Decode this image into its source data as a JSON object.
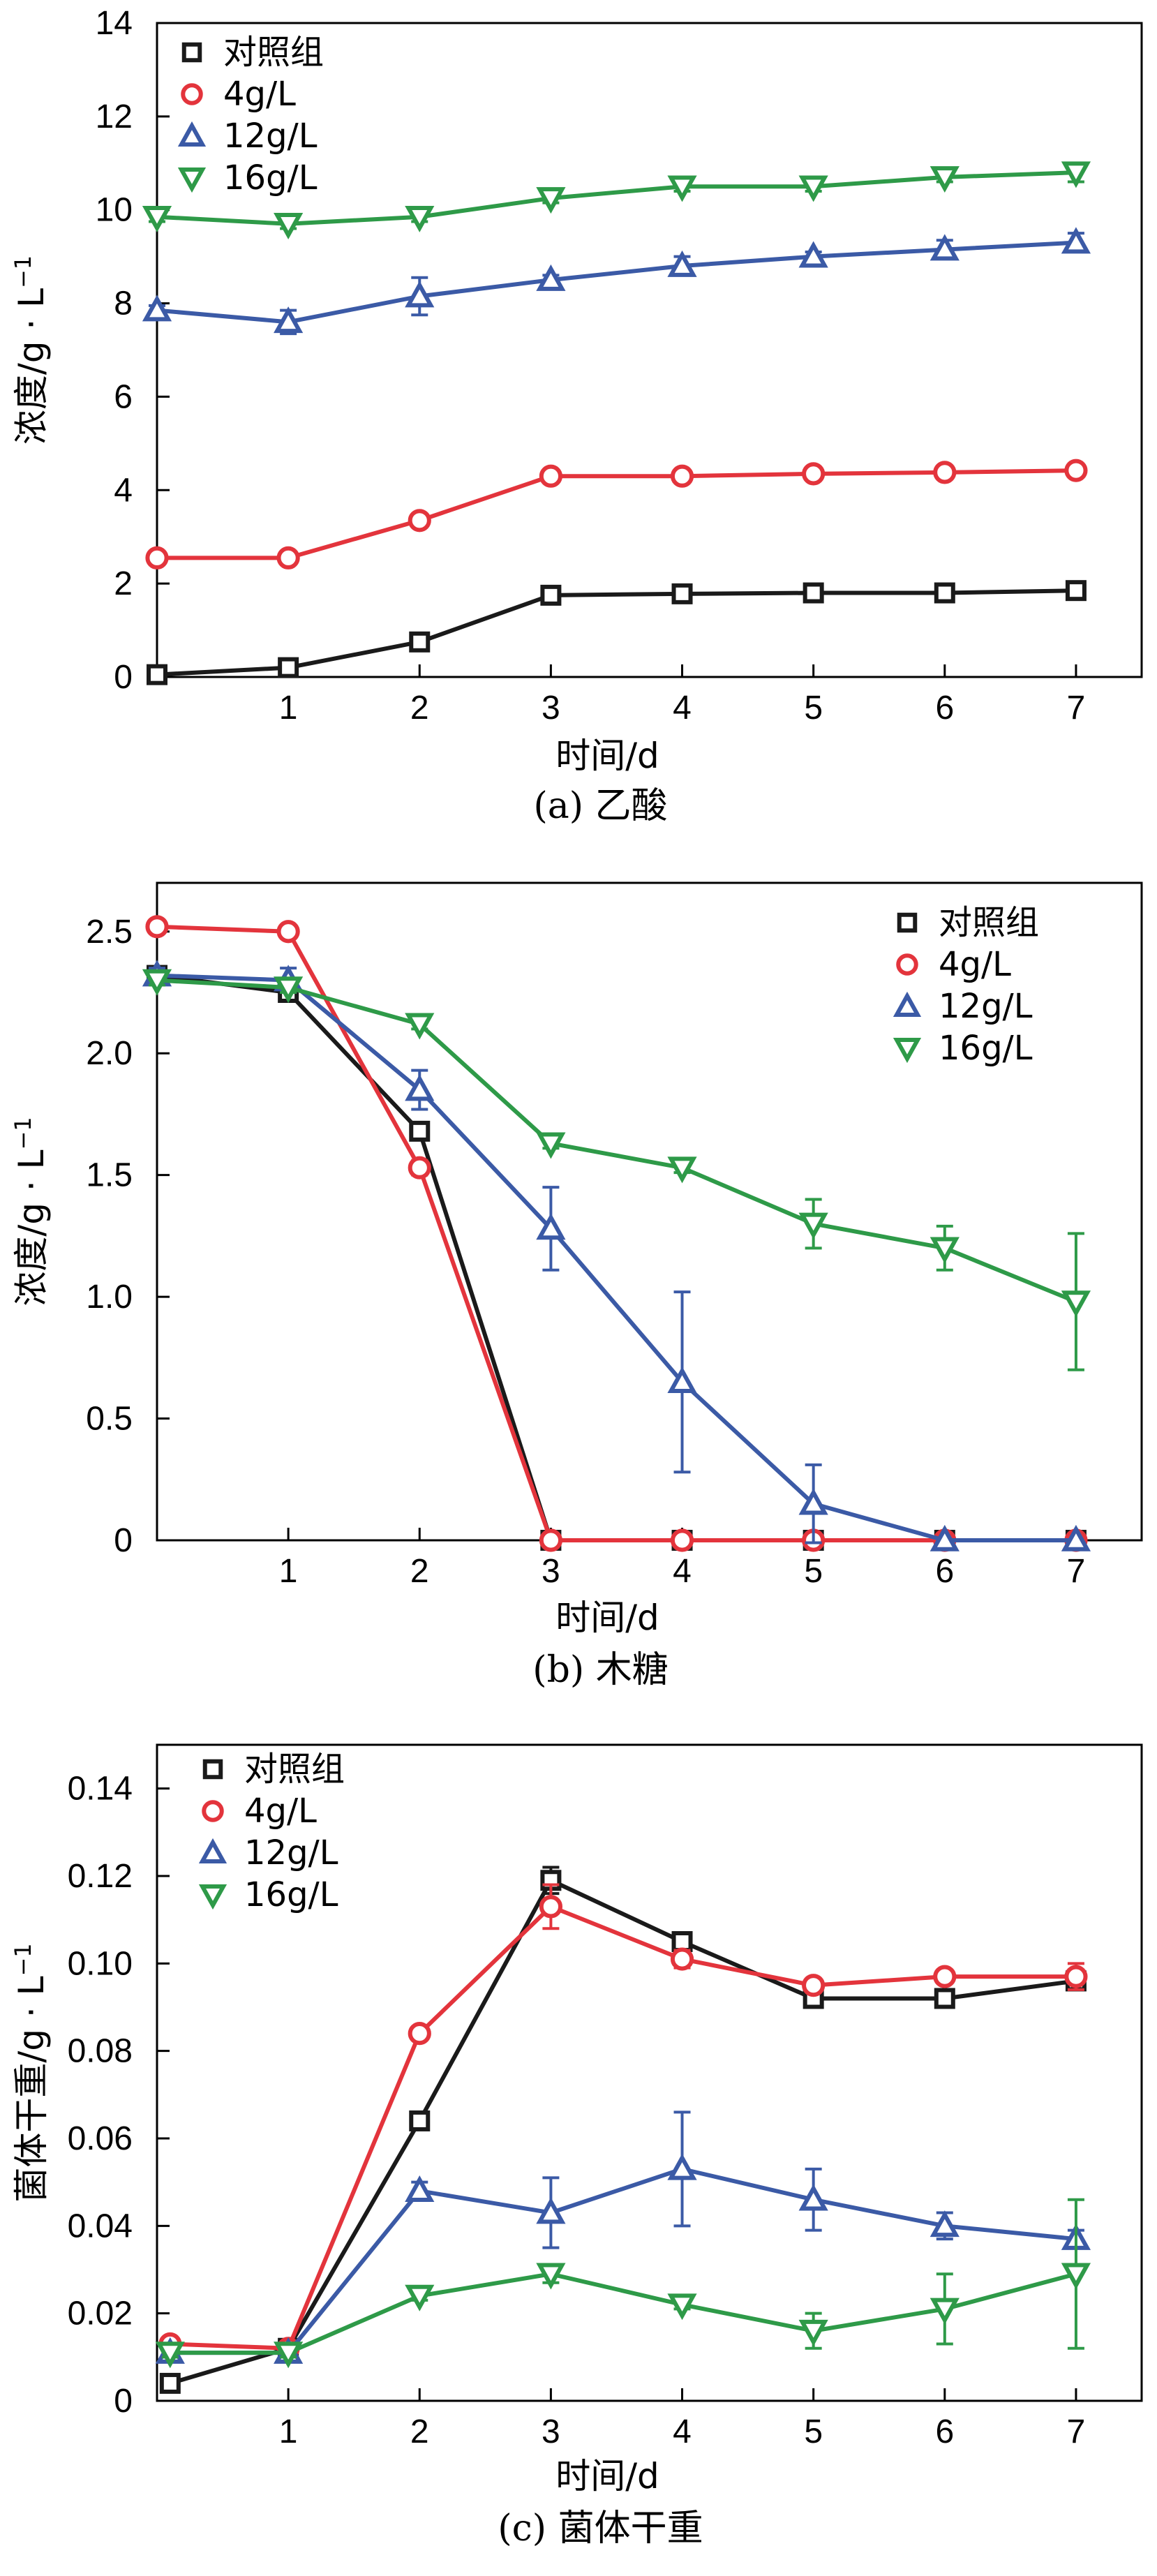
{
  "figure_title": "",
  "colors": {
    "对照组": "#1a1a1a",
    "4g/L": "#e3343c",
    "12g/L": "#3b5aa6",
    "16g/L": "#2e9a48"
  },
  "chart_data": [
    {
      "id": "a",
      "type": "line",
      "caption": "(a) 乙酸",
      "xlabel": "时间/d",
      "ylabel": "浓度/g·L⁻¹",
      "ylabel_main": "浓度/g · L",
      "ylabel_sup": "−1",
      "xlim": [
        0,
        7.5
      ],
      "ylim": [
        0,
        14
      ],
      "x_ticks": [
        1,
        2,
        3,
        4,
        5,
        6,
        7
      ],
      "x_tick_labels": [
        "1",
        "2",
        "3",
        "4",
        "5",
        "6",
        "7"
      ],
      "y_ticks": [
        0,
        2,
        4,
        6,
        8,
        10,
        12,
        14
      ],
      "y_tick_labels": [
        "0",
        "2",
        "4",
        "6",
        "8",
        "10",
        "12",
        "14"
      ],
      "legend_position": "top-left",
      "x": [
        0,
        1,
        2,
        3,
        4,
        5,
        6,
        7
      ],
      "series": [
        {
          "name": "对照组",
          "marker": "square",
          "values": [
            0.05,
            0.2,
            0.75,
            1.75,
            1.78,
            1.8,
            1.8,
            1.85
          ],
          "errors": [
            0.05,
            0.05,
            0.1,
            0.05,
            0.05,
            0.05,
            0.05,
            0.05
          ]
        },
        {
          "name": "4g/L",
          "marker": "circle",
          "values": [
            2.55,
            2.55,
            3.35,
            4.3,
            4.3,
            4.35,
            4.38,
            4.42
          ],
          "errors": [
            0.05,
            0.05,
            0.1,
            0.05,
            0.05,
            0.05,
            0.05,
            0.05
          ]
        },
        {
          "name": "12g/L",
          "marker": "triangle-up",
          "values": [
            7.85,
            7.6,
            8.15,
            8.5,
            8.8,
            9.0,
            9.15,
            9.3
          ],
          "errors": [
            0.1,
            0.25,
            0.4,
            0.1,
            0.2,
            0.1,
            0.2,
            0.2
          ]
        },
        {
          "name": "16g/L",
          "marker": "triangle-down",
          "values": [
            9.85,
            9.7,
            9.85,
            10.25,
            10.5,
            10.5,
            10.7,
            10.8
          ],
          "errors": [
            0.1,
            0.1,
            0.1,
            0.1,
            0.1,
            0.1,
            0.1,
            0.2
          ]
        }
      ]
    },
    {
      "id": "b",
      "type": "line",
      "caption": "(b) 木糖",
      "xlabel": "时间/d",
      "ylabel": "浓度/g·L⁻¹",
      "ylabel_main": "浓度/g · L",
      "ylabel_sup": "−1",
      "xlim": [
        0,
        7.5
      ],
      "ylim": [
        0,
        2.7
      ],
      "x_ticks": [
        1,
        2,
        3,
        4,
        5,
        6,
        7
      ],
      "x_tick_labels": [
        "1",
        "2",
        "3",
        "4",
        "5",
        "6",
        "7"
      ],
      "y_ticks": [
        0,
        0.5,
        1.0,
        1.5,
        2.0,
        2.5
      ],
      "y_tick_labels": [
        "0",
        "0.5",
        "1.0",
        "1.5",
        "2.0",
        "2.5"
      ],
      "legend_position": "top-right",
      "x": [
        0,
        1,
        2,
        3,
        4,
        5,
        6,
        7
      ],
      "series": [
        {
          "name": "对照组",
          "marker": "square",
          "values": [
            2.32,
            2.25,
            1.68,
            0,
            0,
            0,
            0,
            0
          ],
          "errors": [
            0.03,
            0.03,
            0.03,
            0,
            0,
            0,
            0,
            0
          ]
        },
        {
          "name": "4g/L",
          "marker": "circle",
          "values": [
            2.52,
            2.5,
            1.53,
            0,
            0,
            0,
            0,
            0
          ],
          "errors": [
            0.02,
            0.02,
            0.03,
            0,
            0,
            0,
            0,
            0
          ]
        },
        {
          "name": "12g/L",
          "marker": "triangle-up",
          "values": [
            2.32,
            2.3,
            1.85,
            1.28,
            0.65,
            0.15,
            0,
            0
          ],
          "errors": [
            0.03,
            0.05,
            0.08,
            0.17,
            0.37,
            0.16,
            0,
            0
          ]
        },
        {
          "name": "16g/L",
          "marker": "triangle-down",
          "values": [
            2.3,
            2.27,
            2.12,
            1.63,
            1.53,
            1.3,
            1.2,
            0.98
          ],
          "errors": [
            0.02,
            0.02,
            0.02,
            0.02,
            0.02,
            0.1,
            0.09,
            0.28
          ]
        }
      ]
    },
    {
      "id": "c",
      "type": "line",
      "caption": "(c) 菌体干重",
      "xlabel": "时间/d",
      "ylabel": "菌体干重/g·L⁻¹",
      "ylabel_main": "菌体干重/g · L",
      "ylabel_sup": "−1",
      "xlim": [
        0,
        7.5
      ],
      "ylim": [
        0,
        0.15
      ],
      "x_ticks": [
        1,
        2,
        3,
        4,
        5,
        6,
        7
      ],
      "x_tick_labels": [
        "1",
        "2",
        "3",
        "4",
        "5",
        "6",
        "7"
      ],
      "y_ticks": [
        0,
        0.02,
        0.04,
        0.06,
        0.08,
        0.1,
        0.12,
        0.14
      ],
      "y_tick_labels": [
        "0",
        "0.02",
        "0.04",
        "0.06",
        "0.08",
        "0.10",
        "0.12",
        "0.14"
      ],
      "legend_position": "top-left",
      "x": [
        0.1,
        1,
        2,
        3,
        4,
        5,
        6,
        7
      ],
      "series": [
        {
          "name": "对照组",
          "marker": "square",
          "values": [
            0.004,
            0.012,
            0.064,
            0.119,
            0.105,
            0.092,
            0.092,
            0.096
          ],
          "errors": [
            0.002,
            0.001,
            0.002,
            0.003,
            0.002,
            0.002,
            0.001,
            0.002
          ]
        },
        {
          "name": "4g/L",
          "marker": "circle",
          "values": [
            0.013,
            0.012,
            0.084,
            0.113,
            0.101,
            0.095,
            0.097,
            0.097
          ],
          "errors": [
            0.001,
            0.001,
            0.001,
            0.005,
            0.002,
            0.001,
            0.001,
            0.003
          ]
        },
        {
          "name": "12g/L",
          "marker": "triangle-up",
          "values": [
            0.011,
            0.011,
            0.048,
            0.043,
            0.053,
            0.046,
            0.04,
            0.037
          ],
          "errors": [
            0.001,
            0.001,
            0.002,
            0.008,
            0.013,
            0.007,
            0.003,
            0.002
          ]
        },
        {
          "name": "16g/L",
          "marker": "triangle-down",
          "values": [
            0.011,
            0.011,
            0.024,
            0.029,
            0.022,
            0.016,
            0.021,
            0.029
          ],
          "errors": [
            0.001,
            0.001,
            0.001,
            0.002,
            0.001,
            0.004,
            0.008,
            0.017
          ]
        }
      ]
    }
  ]
}
